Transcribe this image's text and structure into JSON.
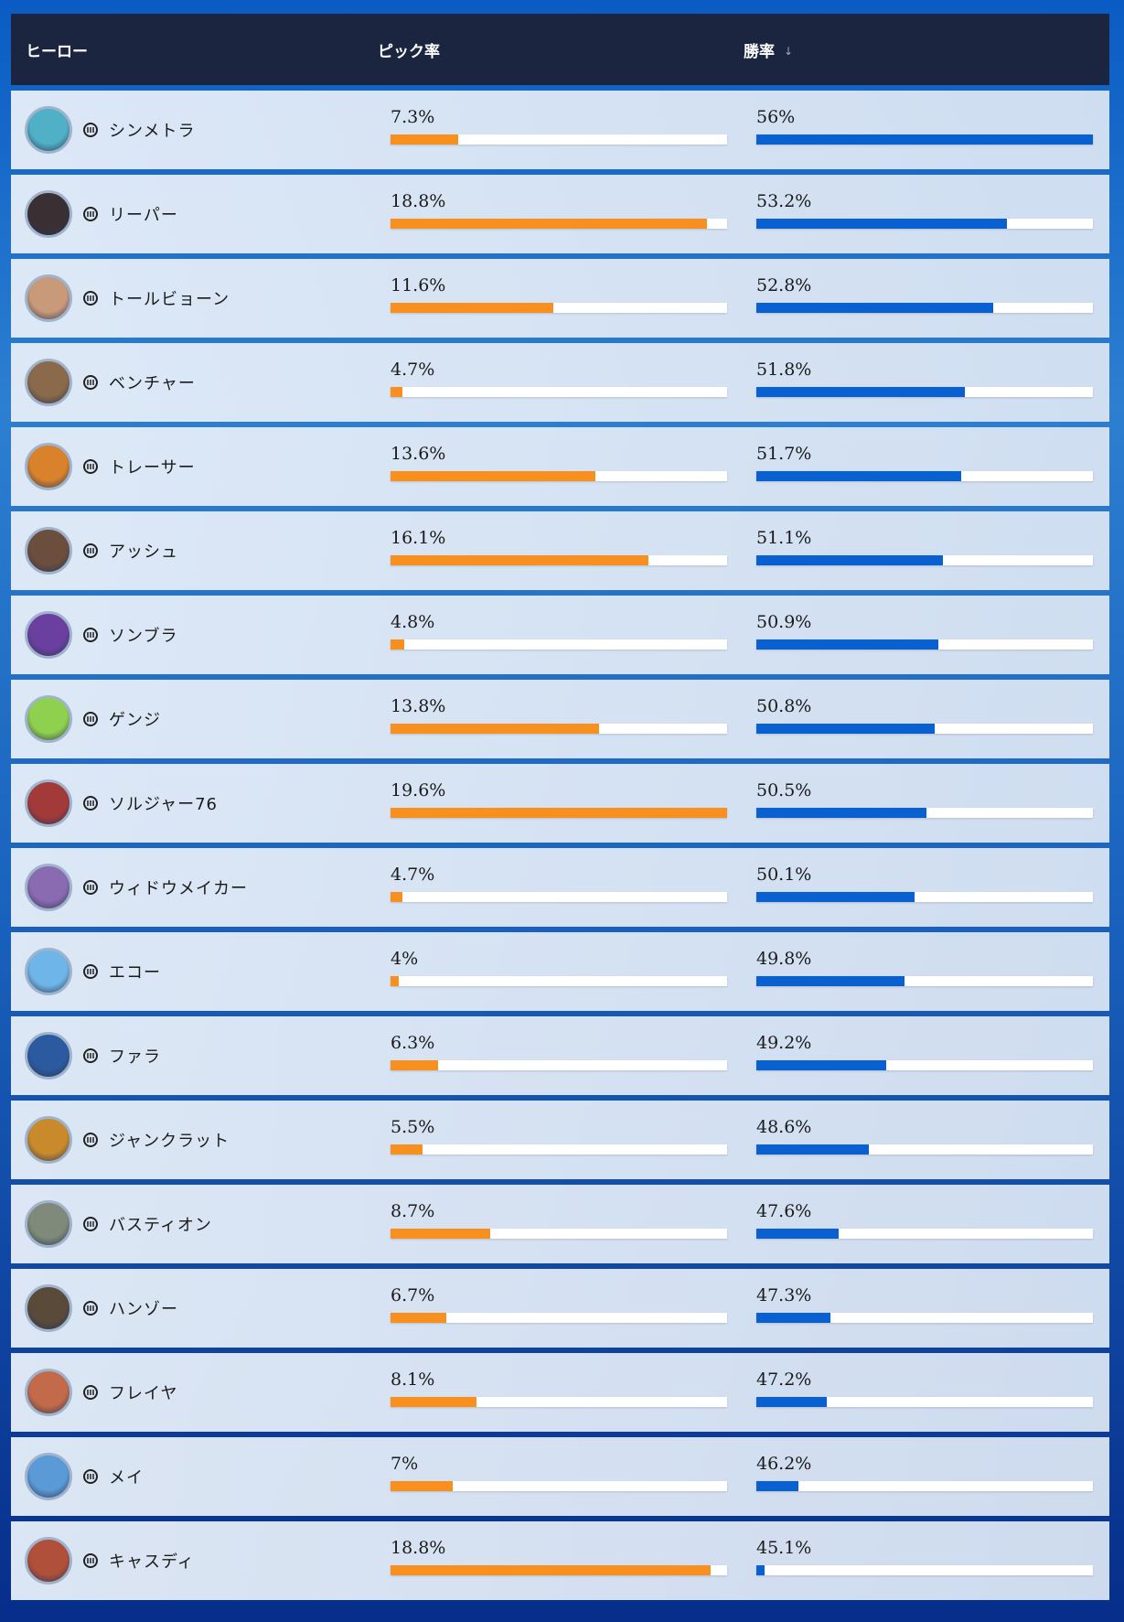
{
  "header": {
    "hero": "ヒーロー",
    "pick_rate": "ピック率",
    "win_rate": "勝率"
  },
  "colors": {
    "pick_bar": "#f7901e",
    "win_bar": "#0860d1",
    "header_bg": "#1b2540"
  },
  "heroes": [
    {
      "name": "シンメトラ",
      "pick_rate": "7.3%",
      "win_rate": "56%",
      "pick_fill": 0.2,
      "win_fill": 1.0,
      "avatar_color": "#4fb0c6",
      "avatar_icon": "symmetra-portrait"
    },
    {
      "name": "リーパー",
      "pick_rate": "18.8%",
      "win_rate": "53.2%",
      "pick_fill": 0.94,
      "win_fill": 0.745,
      "avatar_color": "#3a2f33",
      "avatar_icon": "reaper-portrait"
    },
    {
      "name": "トールビョーン",
      "pick_rate": "11.6%",
      "win_rate": "52.8%",
      "pick_fill": 0.485,
      "win_fill": 0.705,
      "avatar_color": "#c99a7a",
      "avatar_icon": "torbjorn-portrait"
    },
    {
      "name": "ベンチャー",
      "pick_rate": "4.7%",
      "win_rate": "51.8%",
      "pick_fill": 0.035,
      "win_fill": 0.62,
      "avatar_color": "#8a6a4a",
      "avatar_icon": "venture-portrait"
    },
    {
      "name": "トレーサー",
      "pick_rate": "13.6%",
      "win_rate": "51.7%",
      "pick_fill": 0.61,
      "win_fill": 0.61,
      "avatar_color": "#d9822b",
      "avatar_icon": "tracer-portrait"
    },
    {
      "name": "アッシュ",
      "pick_rate": "16.1%",
      "win_rate": "51.1%",
      "pick_fill": 0.765,
      "win_fill": 0.555,
      "avatar_color": "#6b4e3d",
      "avatar_icon": "ashe-portrait"
    },
    {
      "name": "ソンブラ",
      "pick_rate": "4.8%",
      "win_rate": "50.9%",
      "pick_fill": 0.04,
      "win_fill": 0.54,
      "avatar_color": "#6b3fa0",
      "avatar_icon": "sombra-portrait"
    },
    {
      "name": "ゲンジ",
      "pick_rate": "13.8%",
      "win_rate": "50.8%",
      "pick_fill": 0.62,
      "win_fill": 0.53,
      "avatar_color": "#8fd14f",
      "avatar_icon": "genji-portrait"
    },
    {
      "name": "ソルジャー76",
      "pick_rate": "19.6%",
      "win_rate": "50.5%",
      "pick_fill": 1.0,
      "win_fill": 0.505,
      "avatar_color": "#a33a3a",
      "avatar_icon": "soldier76-portrait"
    },
    {
      "name": "ウィドウメイカー",
      "pick_rate": "4.7%",
      "win_rate": "50.1%",
      "pick_fill": 0.035,
      "win_fill": 0.47,
      "avatar_color": "#8a6ab0",
      "avatar_icon": "widowmaker-portrait"
    },
    {
      "name": "エコー",
      "pick_rate": "4%",
      "win_rate": "49.8%",
      "pick_fill": 0.025,
      "win_fill": 0.44,
      "avatar_color": "#6fb6e8",
      "avatar_icon": "echo-portrait"
    },
    {
      "name": "ファラ",
      "pick_rate": "6.3%",
      "win_rate": "49.2%",
      "pick_fill": 0.14,
      "win_fill": 0.385,
      "avatar_color": "#2b5aa0",
      "avatar_icon": "pharah-portrait"
    },
    {
      "name": "ジャンクラット",
      "pick_rate": "5.5%",
      "win_rate": "48.6%",
      "pick_fill": 0.095,
      "win_fill": 0.335,
      "avatar_color": "#c98a2b",
      "avatar_icon": "junkrat-portrait"
    },
    {
      "name": "バスティオン",
      "pick_rate": "8.7%",
      "win_rate": "47.6%",
      "pick_fill": 0.295,
      "win_fill": 0.245,
      "avatar_color": "#7f8a7a",
      "avatar_icon": "bastion-portrait"
    },
    {
      "name": "ハンゾー",
      "pick_rate": "6.7%",
      "win_rate": "47.3%",
      "pick_fill": 0.165,
      "win_fill": 0.22,
      "avatar_color": "#5a4a3a",
      "avatar_icon": "hanzo-portrait"
    },
    {
      "name": "フレイヤ",
      "pick_rate": "8.1%",
      "win_rate": "47.2%",
      "pick_fill": 0.255,
      "win_fill": 0.21,
      "avatar_color": "#c26a4a",
      "avatar_icon": "freja-portrait"
    },
    {
      "name": "メイ",
      "pick_rate": "7%",
      "win_rate": "46.2%",
      "pick_fill": 0.185,
      "win_fill": 0.125,
      "avatar_color": "#5a9ad6",
      "avatar_icon": "mei-portrait"
    },
    {
      "name": "キャスディ",
      "pick_rate": "18.8%",
      "win_rate": "45.1%",
      "pick_fill": 0.95,
      "win_fill": 0.025,
      "avatar_color": "#b0503a",
      "avatar_icon": "cassidy-portrait"
    }
  ]
}
